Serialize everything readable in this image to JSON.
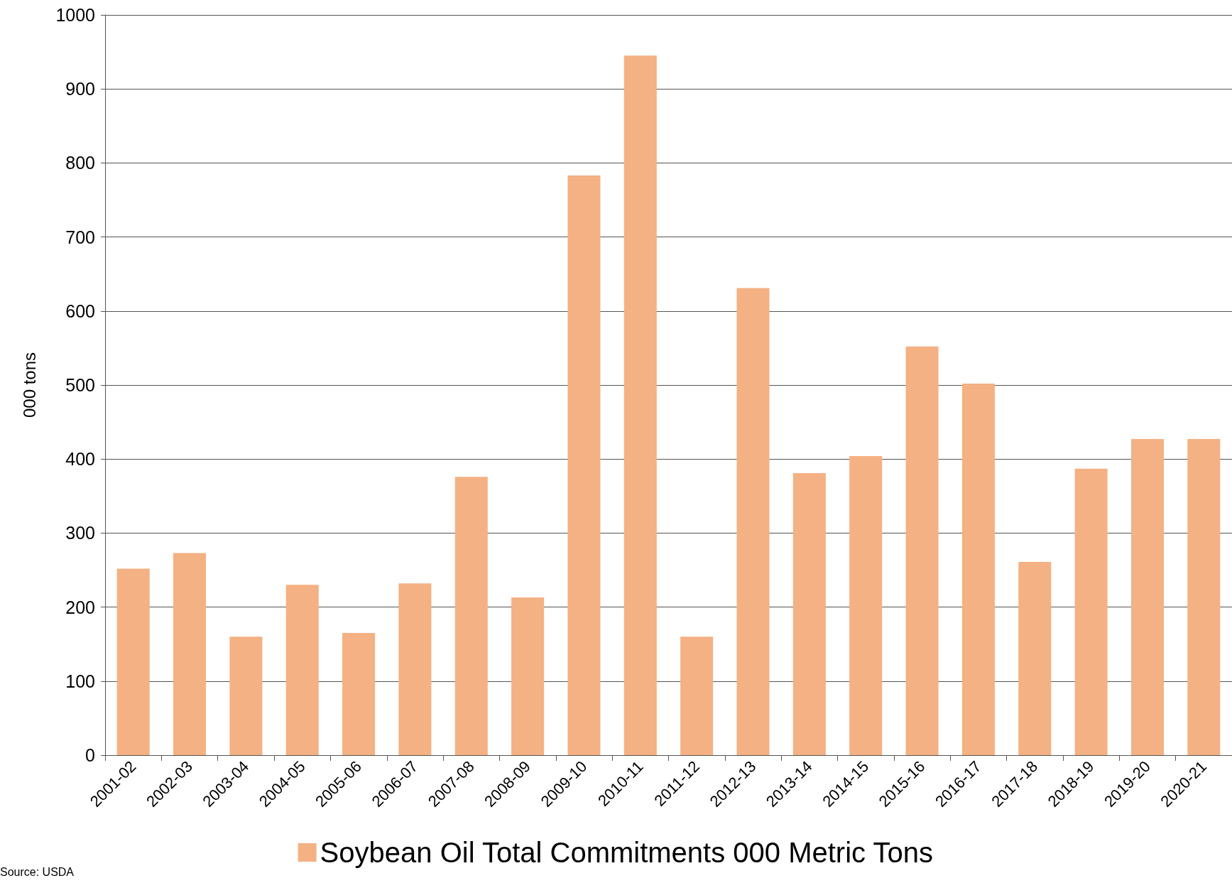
{
  "chart_data": {
    "type": "bar",
    "ylabel": "000 tons",
    "categories": [
      "2001-02",
      "2002-03",
      "2003-04",
      "2004-05",
      "2005-06",
      "2006-07",
      "2007-08",
      "2008-09",
      "2009-10",
      "2010-11",
      "2011-12",
      "2012-13",
      "2013-14",
      "2014-15",
      "2015-16",
      "2016-17",
      "2017-18",
      "2018-19",
      "2019-20",
      "2020-21"
    ],
    "series": [
      {
        "name": "Soybean Oil Total Commitments 000 Metric Tons",
        "color": "#f4b183",
        "values": [
          252,
          273,
          160,
          230,
          165,
          232,
          376,
          213,
          783,
          945,
          160,
          631,
          381,
          404,
          552,
          502,
          261,
          387,
          427,
          427
        ]
      }
    ],
    "ylim": [
      0,
      1000
    ],
    "yticks": [
      0,
      100,
      200,
      300,
      400,
      500,
      600,
      700,
      800,
      900,
      1000
    ],
    "grid": "y",
    "legend": "bottom",
    "annotations": [
      "Source: USDA"
    ]
  }
}
